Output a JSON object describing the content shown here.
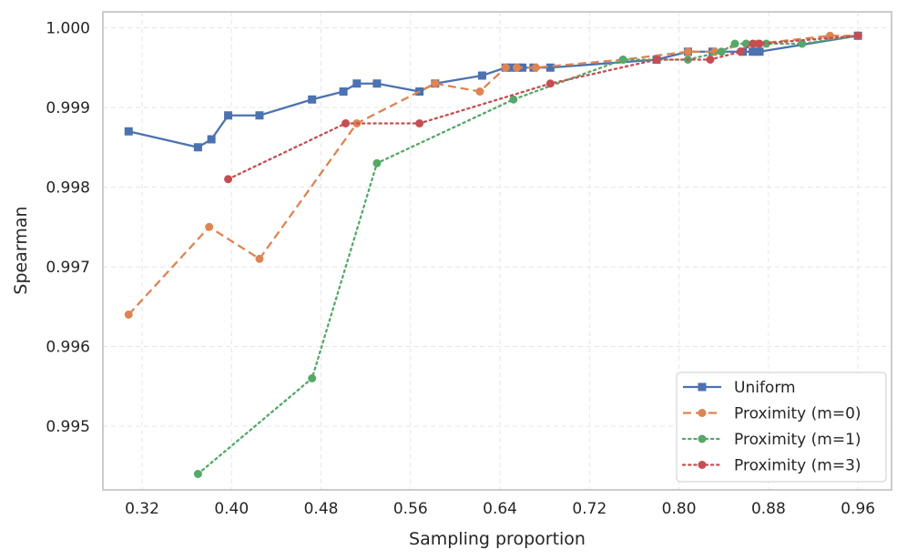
{
  "chart_data": {
    "type": "line",
    "xlabel": "Sampling proportion",
    "ylabel": "Spearman",
    "xlim": [
      0.285,
      0.99
    ],
    "ylim": [
      0.9942,
      1.0002
    ],
    "grid": true,
    "legend_position": "bottom-right",
    "x_ticks": [
      0.32,
      0.4,
      0.48,
      0.56,
      0.64,
      0.72,
      0.8,
      0.88,
      0.96
    ],
    "x_tick_labels": [
      "0.32",
      "0.40",
      "0.48",
      "0.56",
      "0.64",
      "0.72",
      "0.80",
      "0.88",
      "0.96"
    ],
    "y_ticks": [
      0.995,
      0.996,
      0.997,
      0.998,
      0.999,
      1.0
    ],
    "y_tick_labels": [
      "0.995",
      "0.996",
      "0.997",
      "0.998",
      "0.999",
      "1.000"
    ],
    "series": [
      {
        "name": "Uniform",
        "color": "#4c72b0",
        "line_style": "solid",
        "marker": "square",
        "x": [
          0.308,
          0.37,
          0.382,
          0.397,
          0.425,
          0.472,
          0.5,
          0.512,
          0.53,
          0.568,
          0.582,
          0.624,
          0.645,
          0.65,
          0.656,
          0.66,
          0.67,
          0.685,
          0.78,
          0.808,
          0.83,
          0.857,
          0.866,
          0.872,
          0.96
        ],
        "y": [
          0.9987,
          0.9985,
          0.9986,
          0.9989,
          0.9989,
          0.9991,
          0.9992,
          0.9993,
          0.9993,
          0.9992,
          0.9993,
          0.9994,
          0.9995,
          0.9995,
          0.9995,
          0.9995,
          0.9995,
          0.9995,
          0.9996,
          0.9997,
          0.9997,
          0.9997,
          0.9997,
          0.9997,
          0.9999
        ]
      },
      {
        "name": "Proximity (m=0)",
        "color": "#dd8452",
        "line_style": "dashed",
        "marker": "circle",
        "x": [
          0.308,
          0.38,
          0.425,
          0.512,
          0.582,
          0.622,
          0.645,
          0.655,
          0.672,
          0.75,
          0.808,
          0.832,
          0.86,
          0.87,
          0.935,
          0.96
        ],
        "y": [
          0.9964,
          0.9975,
          0.9971,
          0.9988,
          0.9993,
          0.9992,
          0.9995,
          0.9995,
          0.9995,
          0.9996,
          0.9997,
          0.9997,
          0.9998,
          0.9998,
          0.9999,
          0.9999
        ]
      },
      {
        "name": "Proximity (m=1)",
        "color": "#55a868",
        "line_style": "dotted",
        "marker": "circle",
        "x": [
          0.37,
          0.472,
          0.53,
          0.652,
          0.75,
          0.808,
          0.838,
          0.85,
          0.86,
          0.878,
          0.91,
          0.96
        ],
        "y": [
          0.9944,
          0.9956,
          0.9983,
          0.9991,
          0.9996,
          0.9996,
          0.9997,
          0.9998,
          0.9998,
          0.9998,
          0.9998,
          0.9999
        ]
      },
      {
        "name": "Proximity (m=3)",
        "color": "#c44e52",
        "line_style": "dotted",
        "marker": "circle",
        "x": [
          0.397,
          0.502,
          0.568,
          0.685,
          0.78,
          0.828,
          0.855,
          0.866,
          0.872,
          0.96
        ],
        "y": [
          0.9981,
          0.9988,
          0.9988,
          0.9993,
          0.9996,
          0.9996,
          0.9997,
          0.9998,
          0.9998,
          0.9999
        ]
      }
    ]
  }
}
